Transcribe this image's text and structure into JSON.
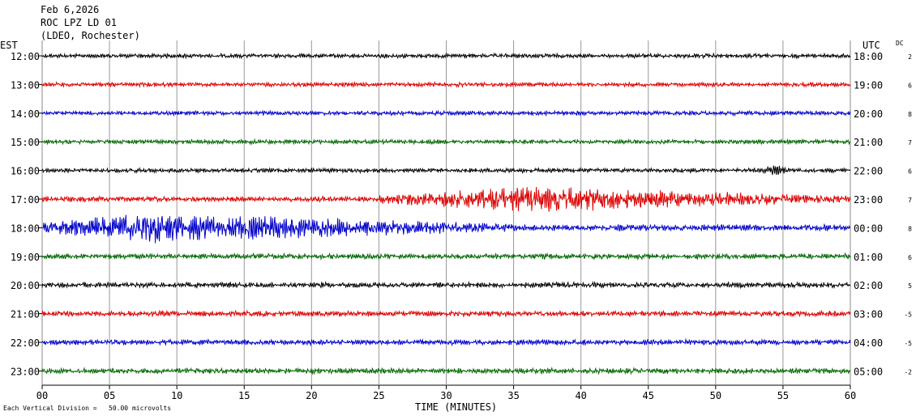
{
  "header": {
    "date": "Feb 6,2026",
    "station": "ROC LPZ LD 01",
    "network": "(LDEO, Rochester)"
  },
  "footnote": "Each Vertical Division =   50.00 microvolts",
  "chart_data": {
    "type": "line",
    "title": "",
    "xlabel": "TIME (MINUTES)",
    "xlim": [
      0,
      60
    ],
    "x_ticks": [
      "00",
      "05",
      "10",
      "15",
      "20",
      "25",
      "30",
      "35",
      "40",
      "45",
      "50",
      "55",
      "60"
    ],
    "left_axis_label": "EST",
    "right_axis_label": "UTC",
    "dc_label": "DC",
    "grid": true,
    "trace_colors": [
      "#000000",
      "#dd0000",
      "#0000cc",
      "#006600"
    ],
    "rows": [
      {
        "est": "12:00",
        "utc": "18:00",
        "dc": "2",
        "color": "#000000",
        "amplitude": 2,
        "events": []
      },
      {
        "est": "13:00",
        "utc": "19:00",
        "dc": "6",
        "color": "#dd0000",
        "amplitude": 2,
        "events": []
      },
      {
        "est": "14:00",
        "utc": "20:00",
        "dc": "8",
        "color": "#0000cc",
        "amplitude": 2,
        "events": []
      },
      {
        "est": "15:00",
        "utc": "21:00",
        "dc": "7",
        "color": "#006600",
        "amplitude": 2,
        "events": []
      },
      {
        "est": "16:00",
        "utc": "22:00",
        "dc": "6",
        "color": "#000000",
        "amplitude": 2,
        "events": [
          {
            "start": 53.5,
            "end": 55.5,
            "amp": 6
          }
        ]
      },
      {
        "est": "17:00",
        "utc": "23:00",
        "dc": "7",
        "color": "#dd0000",
        "amplitude": 2.5,
        "events": [
          {
            "start": 25,
            "end": 60,
            "amp": 12,
            "peak": 37
          }
        ]
      },
      {
        "est": "18:00",
        "utc": "00:00",
        "dc": "8",
        "color": "#0000cc",
        "amplitude": 3,
        "events": [
          {
            "start": 0,
            "end": 35,
            "amp": 14,
            "peak": 8
          }
        ]
      },
      {
        "est": "19:00",
        "utc": "01:00",
        "dc": "6",
        "color": "#006600",
        "amplitude": 2.5,
        "events": []
      },
      {
        "est": "20:00",
        "utc": "02:00",
        "dc": "5",
        "color": "#000000",
        "amplitude": 2.5,
        "events": []
      },
      {
        "est": "21:00",
        "utc": "03:00",
        "dc": "-5",
        "color": "#dd0000",
        "amplitude": 2.5,
        "events": []
      },
      {
        "est": "22:00",
        "utc": "04:00",
        "dc": "-5",
        "color": "#0000cc",
        "amplitude": 2.5,
        "events": []
      },
      {
        "est": "23:00",
        "utc": "05:00",
        "dc": "-2",
        "color": "#006600",
        "amplitude": 2.5,
        "events": []
      }
    ]
  }
}
